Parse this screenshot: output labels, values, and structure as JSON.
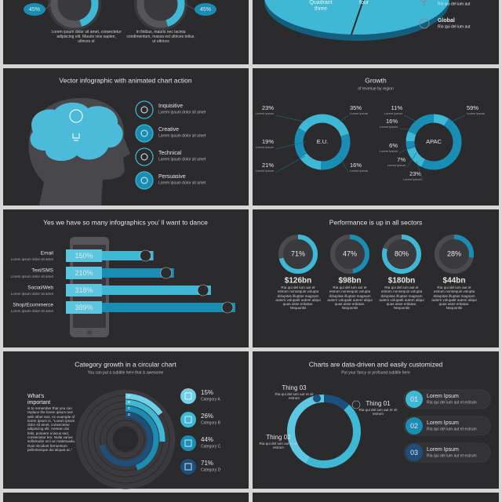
{
  "top_left": {
    "donuts": [
      {
        "value": 45,
        "label": "45%"
      },
      {
        "value": 45,
        "label": "45%"
      }
    ],
    "captions": [
      "Lorem ipsum dolor sit amet, consectetur adipiscing elit. Mauris vios sapien, ultrices ut",
      "In finibus, mauris nec lacinia condimentum, massa est ultrices tellus, ut ultrices"
    ]
  },
  "top_right": {
    "pie_labels": [
      "Quadrant three",
      "four"
    ],
    "legend": [
      {
        "text": "Rio qui del ium aut"
      },
      {
        "title": "Global",
        "text": "Rio qui del ium aut"
      }
    ]
  },
  "mind": {
    "title": "Vector infographic with animated chart action",
    "items": [
      {
        "label": "Inquisitive",
        "text": "Lorem ipsum dolor sit amet"
      },
      {
        "label": "Creative",
        "text": "Lorem ipsum dolor sit amet"
      },
      {
        "label": "Technical",
        "text": "Lorem ipsum dolor sit amet"
      },
      {
        "label": "Persuasive",
        "text": "Lorem ipsum dolor sit amet"
      }
    ]
  },
  "growth": {
    "title": "Growth",
    "subtitle": "of revenue by region",
    "regions": [
      {
        "name": "E.U.",
        "segments": [
          {
            "value": 23,
            "label": "23%",
            "text": "Lorem ipsum"
          },
          {
            "value": 35,
            "label": "35%",
            "text": "Lorem ipsum"
          },
          {
            "value": 16,
            "label": "16%",
            "text": "Lorem ipsum"
          },
          {
            "value": 21,
            "label": "21%",
            "text": "Lorem ipsum"
          },
          {
            "value": 19,
            "label": "19%",
            "text": "Lorem ipsum"
          }
        ]
      },
      {
        "name": "APAC",
        "segments": [
          {
            "value": 11,
            "label": "11%",
            "text": "Lorem ipsum"
          },
          {
            "value": 59,
            "label": "59%",
            "text": "Lorem ipsum"
          },
          {
            "value": 16,
            "label": "16%",
            "text": "Lorem ipsum"
          },
          {
            "value": 6,
            "label": "6%",
            "text": "Lorem ipsum"
          },
          {
            "value": 7,
            "label": "7%",
            "text": "Lorem ipsum"
          },
          {
            "value": 23,
            "label": "23%",
            "text": "Lorem ipsum"
          }
        ]
      }
    ]
  },
  "channels": {
    "title": "Yes we have so many infographics you’ ll want to dance",
    "items": [
      {
        "name": "Email",
        "value": 150,
        "label": "150%",
        "text": "Lorem ipsum dolor sit amet"
      },
      {
        "name": "Text/SMS",
        "value": 210,
        "label": "210%",
        "text": "Lorem ipsum dolor sit amet"
      },
      {
        "name": "Social/Web",
        "value": 318,
        "label": "318%",
        "text": "Lorem ipsum dolor sit amet"
      },
      {
        "name": "Shop/Ecommerce",
        "value": 389,
        "label": "389%",
        "text": "Lorem ipsum dolor sit amet"
      }
    ]
  },
  "performance": {
    "title": "Performance is up in all sectors",
    "items": [
      {
        "value": 71,
        "label": "71%",
        "amount": "$126bn",
        "text": "Ria qui del ium aut et estrum nonsequis volupta dolupitas illuptas magnam autem volupatit autem aliqui quas asse eritatae. Nequuntis"
      },
      {
        "value": 47,
        "label": "47%",
        "amount": "$98bn",
        "text": "Ria qui del ium aut et estrum nonsequis volupta dolupitas illuptas magnam autem volupatit autem aliqui quas asse eritatae. Nequuntis"
      },
      {
        "value": 80,
        "label": "80%",
        "amount": "$180bn",
        "text": "Ria qui del ium aut et estrum nonsequis volupta dolupitas illuptas magnam autem volupatit autem aliqui quas asse eritatae. Nequuntis"
      },
      {
        "value": 28,
        "label": "28%",
        "amount": "$44bn",
        "text": "Ria qui del ium aut et estrum nonsequis volupta dolupitas illuptas magnam autem volupatit autem aliqui quas asse eritatae. Nequuntis"
      }
    ]
  },
  "category": {
    "title": "Category growth in a circular chart",
    "subtitle": "You can put a subtitle here that is awesome",
    "heading": "What’s important",
    "body": "is to remember that you can replace the lorem ipsum text with other text. An example of lorem ipsum is, \"Lorem ipsum dolor sit amet, consectetur adipiscing elit. Aenean dui felis, posuere a lacus sed, consectetur leo. Nulla varius sollicitudin orci ac malesuada. Duis tincidunt fermentum pellentesque dui aliquet ac.\"",
    "items": [
      {
        "letter": "A",
        "value": 15,
        "label": "15%",
        "name": "Category A"
      },
      {
        "letter": "B",
        "value": 26,
        "label": "26%",
        "name": "Category B"
      },
      {
        "letter": "C",
        "value": 44,
        "label": "44%",
        "name": "Category C"
      },
      {
        "letter": "D",
        "value": 71,
        "label": "71%",
        "name": "Category D"
      }
    ]
  },
  "things": {
    "title": "Charts are data-driven and easily customized",
    "subtitle": "Put your fancy or profound subtitle here",
    "things": [
      {
        "name": "Thing 03",
        "text": "Ria qui del ium aut et vit estrum"
      },
      {
        "name": "Thing 01",
        "text": "Ria qui del ium aut et vit estrum"
      },
      {
        "name": "Thing 02",
        "text": "Ria qui del ium aut et vit estrum"
      }
    ],
    "list": [
      {
        "number": "01",
        "title": "Lorem Ipsum",
        "text": "Ria qui del ium aut et estrum"
      },
      {
        "number": "02",
        "title": "Lorem Ipsum",
        "text": "Ria qui del ium aut et estrum"
      },
      {
        "number": "03",
        "title": "Lorem Ipsum",
        "text": "Ria qui del ium aut et estrum"
      }
    ]
  }
}
